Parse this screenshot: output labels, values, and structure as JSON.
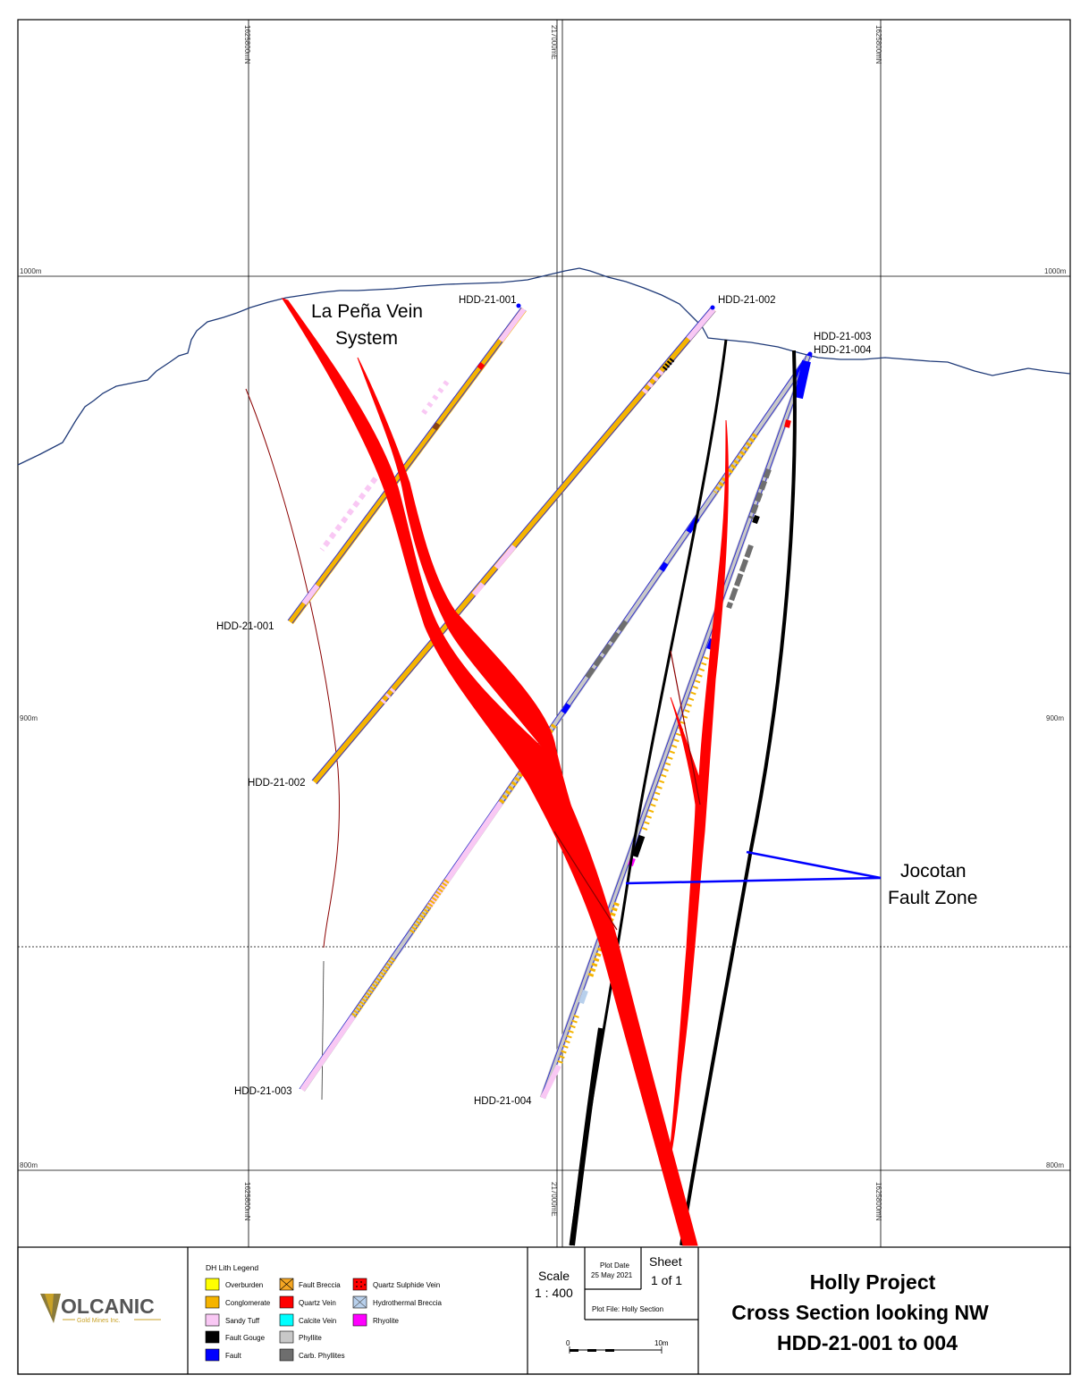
{
  "grid_labels": {
    "top_left": "1625800mN",
    "top_center": "217000mE",
    "top_right": "1625800mN",
    "bottom_left": "1625800mN",
    "bottom_center": "217000mE",
    "bottom_right": "1625800mN",
    "left_1000": "1000m",
    "right_1000": "1000m",
    "left_900": "900m",
    "right_900": "900m",
    "left_800": "800m",
    "right_800": "800m"
  },
  "collar_labels": {
    "hdd1": "HDD-21-001",
    "hdd2": "HDD-21-002",
    "hdd3": "HDD-21-003",
    "hdd4": "HDD-21-004"
  },
  "toe_labels": {
    "hdd1": "HDD-21-001",
    "hdd2": "HDD-21-002",
    "hdd3": "HDD-21-003",
    "hdd4": "HDD-21-004"
  },
  "annotations": {
    "vein_line1": "La Peña Vein",
    "vein_line2": "System",
    "fault_line1": "Jocotan",
    "fault_line2": "Fault Zone"
  },
  "colors": {
    "overburden": "#ffff00",
    "conglomerate": "#f5b400",
    "sandy_tuff": "#f9c8f4",
    "fault_gouge": "#000000",
    "fault": "#0000ff",
    "fault_breccia": "#f5a623",
    "quartz_vein": "#ff0000",
    "calcite_vein": "#00ffff",
    "phyllite": "#c8c8c8",
    "carb_phyllites": "#6e6e6e",
    "quartz_sulphide_vein": "#ff0000",
    "hydrothermal_breccia": "#b8d0ec",
    "rhyolite": "#ff00ff"
  },
  "title_block": {
    "logo_main": "OLCANIC",
    "logo_sub": "Gold Mines Inc.",
    "legend_title": "DH Lith Legend",
    "legend": [
      {
        "label": "Overburden",
        "color": "#ffff00"
      },
      {
        "label": "Conglomerate",
        "color": "#f5b400"
      },
      {
        "label": "Sandy Tuff",
        "color": "#f9c8f4"
      },
      {
        "label": "Fault Gouge",
        "color": "#000000"
      },
      {
        "label": "Fault",
        "color": "#0000ff"
      },
      {
        "label": "Fault Breccia",
        "color": "#f5a623"
      },
      {
        "label": "Quartz Vein",
        "color": "#ff0000"
      },
      {
        "label": "Calcite Vein",
        "color": "#00ffff"
      },
      {
        "label": "Phyllite",
        "color": "#c8c8c8"
      },
      {
        "label": "Carb. Phyllites",
        "color": "#6e6e6e"
      },
      {
        "label": "Quartz Sulphide Vein",
        "color": "#ff0000"
      },
      {
        "label": "Hydrothermal Breccia",
        "color": "#b8d0ec"
      },
      {
        "label": "Rhyolite",
        "color": "#ff00ff"
      }
    ],
    "scale_label": "Scale",
    "scale_value": "1 : 400",
    "plot_date_label": "Plot Date",
    "plot_date_value": "25 May 2021",
    "sheet_label": "Sheet",
    "sheet_value": "1 of 1",
    "plot_file": "Plot File: Holly Section",
    "scalebar_start": "0",
    "scalebar_end": "10m",
    "title1": "Holly Project",
    "title2": "Cross Section looking NW",
    "title3": "HDD-21-001 to 004"
  }
}
